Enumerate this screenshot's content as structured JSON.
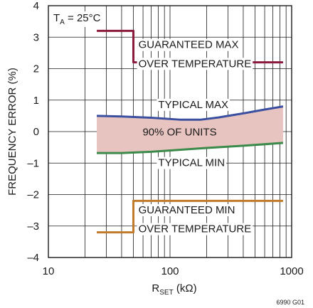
{
  "chart_data": {
    "type": "line",
    "x_scale": "log",
    "xlim": [
      10,
      1000
    ],
    "ylim": [
      -4,
      4
    ],
    "grid": true,
    "title": "",
    "xlabel": {
      "main": "R",
      "sub": "SET",
      "unit": " (kΩ)"
    },
    "ylabel": "FREQUENCY ERROR (%)",
    "x_ticks": [
      {
        "value": 10,
        "label": "10"
      },
      {
        "value": 100,
        "label": "100"
      },
      {
        "value": 1000,
        "label": "1000"
      }
    ],
    "y_ticks": [
      {
        "value": 4,
        "label": "4"
      },
      {
        "value": 3,
        "label": "3"
      },
      {
        "value": 2,
        "label": "2"
      },
      {
        "value": 1,
        "label": "1"
      },
      {
        "value": 0,
        "label": "0"
      },
      {
        "value": -1,
        "label": "–1"
      },
      {
        "value": -2,
        "label": "–2"
      },
      {
        "value": -3,
        "label": "–3"
      },
      {
        "value": -4,
        "label": "–4"
      }
    ],
    "condition": {
      "main": "T",
      "sub": "A",
      "rest": " = 25°C"
    },
    "band": {
      "label": "90% OF UNITS",
      "color": "#e8c4c0"
    },
    "series": [
      {
        "key": "guaranteed_max",
        "color": "#8c1a3c",
        "x": [
          25,
          50,
          50,
          850
        ],
        "y": [
          3.2,
          3.2,
          2.2,
          2.2
        ]
      },
      {
        "key": "typical_max",
        "color": "#3a4fa0",
        "x": [
          25,
          40,
          70,
          120,
          180,
          250,
          400,
          600,
          850
        ],
        "y": [
          0.5,
          0.48,
          0.44,
          0.38,
          0.38,
          0.45,
          0.58,
          0.7,
          0.8
        ]
      },
      {
        "key": "typical_min",
        "color": "#3a8a4a",
        "x": [
          25,
          40,
          70,
          120,
          200,
          400,
          850
        ],
        "y": [
          -0.68,
          -0.68,
          -0.64,
          -0.58,
          -0.52,
          -0.45,
          -0.36
        ]
      },
      {
        "key": "guaranteed_min",
        "color": "#c07a2a",
        "x": [
          25,
          50,
          50,
          850
        ],
        "y": [
          -3.2,
          -3.2,
          -2.2,
          -2.2
        ]
      }
    ],
    "annotations": [
      {
        "key": "gmax1",
        "text": "GUARANTEED MAX",
        "x": 55,
        "y": 2.65
      },
      {
        "key": "gmax2",
        "text": "OVER TEMPERATURE",
        "x": 55,
        "y": 2.05
      },
      {
        "key": "tmax",
        "text": "TYPICAL MAX",
        "x": 80,
        "y": 0.75
      },
      {
        "key": "units",
        "text": "90% OF UNITS",
        "x": 120,
        "y": -0.12,
        "anchor": "middle"
      },
      {
        "key": "tmin",
        "text": "TYPICAL MIN",
        "x": 80,
        "y": -1.1
      },
      {
        "key": "gmin1",
        "text": "GUARANTEED MIN",
        "x": 55,
        "y": -2.6
      },
      {
        "key": "gmin2",
        "text": "OVER TEMPERATURE",
        "x": 55,
        "y": -3.2
      }
    ],
    "figure_id": "6990 G01"
  }
}
